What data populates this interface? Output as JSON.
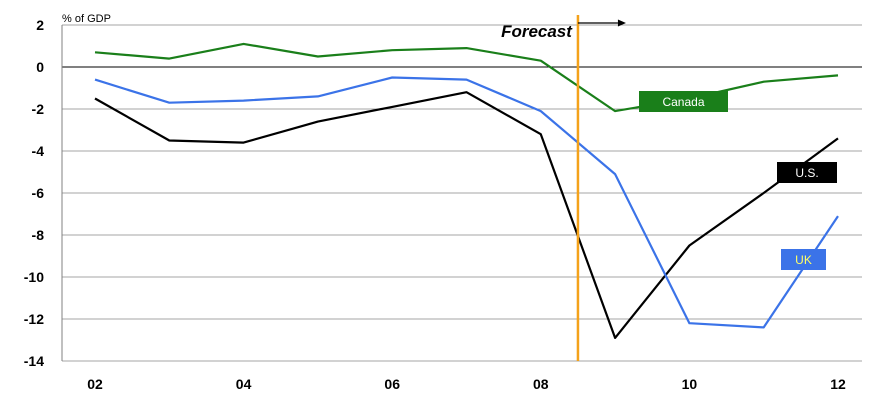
{
  "chart_data": {
    "type": "line",
    "title": "",
    "xlabel": "",
    "ylabel": "% of GDP",
    "ylim": [
      -14,
      2
    ],
    "yticks": [
      2,
      0,
      -2,
      -4,
      -6,
      -8,
      -10,
      -12,
      -14
    ],
    "ytick_labels": [
      "2",
      "0",
      "-2",
      "-4",
      "-6",
      "-8",
      "-10",
      "-12",
      "-14"
    ],
    "xlim": [
      2002,
      2012
    ],
    "xticks": [
      2002,
      2004,
      2006,
      2008,
      2010,
      2012
    ],
    "xtick_labels": [
      "02",
      "04",
      "06",
      "08",
      "10",
      "12"
    ],
    "grid": "horizontal",
    "forecast": {
      "label": "Forecast",
      "x": 2008.5,
      "color": "#f4a21a"
    },
    "x": [
      2002,
      2003,
      2004,
      2005,
      2006,
      2007,
      2008,
      2009,
      2010,
      2011,
      2012
    ],
    "series": [
      {
        "name": "Canada",
        "color": "#1a7f1a",
        "label_text_color": "#ffffff",
        "values": [
          0.7,
          0.4,
          1.1,
          0.5,
          0.8,
          0.9,
          0.3,
          -2.1,
          -1.5,
          -0.7,
          -0.4
        ]
      },
      {
        "name": "U.S.",
        "color": "#000000",
        "label_text_color": "#ffffff",
        "values": [
          -1.5,
          -3.5,
          -3.6,
          -2.6,
          -1.9,
          -1.2,
          -3.2,
          -12.9,
          -8.5,
          -6.0,
          -3.4
        ]
      },
      {
        "name": "UK",
        "color": "#3b73e8",
        "label_text_color": "#ffff66",
        "values": [
          -0.6,
          -1.7,
          -1.6,
          -1.4,
          -0.5,
          -0.6,
          -2.1,
          -5.1,
          -12.2,
          -12.4,
          -7.1
        ]
      }
    ]
  }
}
